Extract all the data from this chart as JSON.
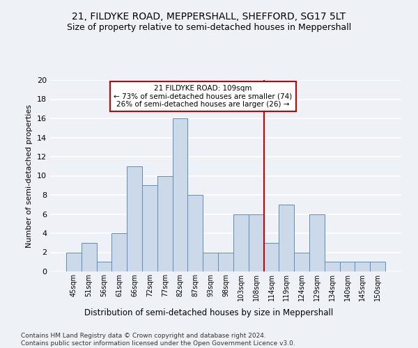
{
  "title": "21, FILDYKE ROAD, MEPPERSHALL, SHEFFORD, SG17 5LT",
  "subtitle": "Size of property relative to semi-detached houses in Meppershall",
  "xlabel": "Distribution of semi-detached houses by size in Meppershall",
  "ylabel": "Number of semi-detached properties",
  "categories": [
    "45sqm",
    "51sqm",
    "56sqm",
    "61sqm",
    "66sqm",
    "72sqm",
    "77sqm",
    "82sqm",
    "87sqm",
    "93sqm",
    "98sqm",
    "103sqm",
    "108sqm",
    "114sqm",
    "119sqm",
    "124sqm",
    "129sqm",
    "134sqm",
    "140sqm",
    "145sqm",
    "150sqm"
  ],
  "values": [
    2,
    3,
    1,
    4,
    11,
    9,
    10,
    16,
    8,
    2,
    2,
    6,
    6,
    3,
    7,
    2,
    6,
    1,
    1,
    1,
    1
  ],
  "bar_color": "#ccd9e8",
  "bar_edge_color": "#5b8db8",
  "highlight_line_color": "#cc0000",
  "highlight_bar_index": 12,
  "annotation_text": "21 FILDYKE ROAD: 109sqm\n← 73% of semi-detached houses are smaller (74)\n26% of semi-detached houses are larger (26) →",
  "annotation_box_color": "#cc0000",
  "ylim": [
    0,
    20
  ],
  "yticks": [
    0,
    2,
    4,
    6,
    8,
    10,
    12,
    14,
    16,
    18,
    20
  ],
  "background_color": "#eef2f7",
  "grid_color": "#ffffff",
  "footer": "Contains HM Land Registry data © Crown copyright and database right 2024.\nContains public sector information licensed under the Open Government Licence v3.0.",
  "title_fontsize": 10,
  "subtitle_fontsize": 9,
  "xlabel_fontsize": 8.5,
  "ylabel_fontsize": 8,
  "footer_fontsize": 6.5
}
